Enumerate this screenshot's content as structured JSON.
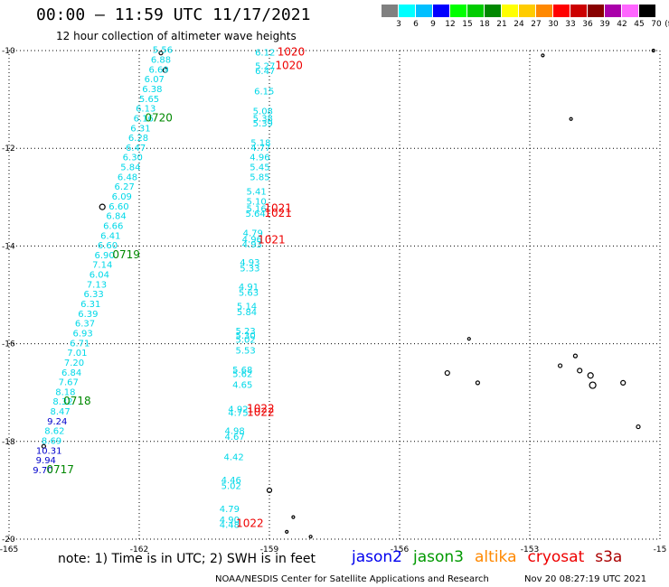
{
  "header": {
    "title": "00:00 — 11:59 UTC 11/17/2021",
    "subtitle": "12 hour collection of altimeter wave heights"
  },
  "legend": {
    "unit": "(ft)",
    "ticks": [
      "3",
      "6",
      "9",
      "12",
      "15",
      "18",
      "21",
      "24",
      "27",
      "30",
      "33",
      "36",
      "39",
      "42",
      "45",
      "70"
    ],
    "colors": [
      "#808080",
      "#00ffff",
      "#00bfff",
      "#0000ff",
      "#00ff00",
      "#00cc00",
      "#008800",
      "#ffff00",
      "#ffcc00",
      "#ff8800",
      "#ff0000",
      "#cc0000",
      "#880000",
      "#aa00aa",
      "#ff66ff",
      "#000000"
    ]
  },
  "map": {
    "lon_labels": [
      "-165",
      "-162",
      "-159",
      "-156",
      "-153",
      "-15"
    ],
    "lat_labels": [
      "-10",
      "-12",
      "-14",
      "-16",
      "-18",
      "-20"
    ],
    "lon_range": [
      -165,
      -150
    ],
    "lat_range": [
      -20,
      -10
    ],
    "grid": "dotted",
    "colors": {
      "cyan": "#00d8e8",
      "blue": "#0000cc",
      "green": "#008800",
      "red": "#ee0000"
    }
  },
  "tracks": {
    "west": [
      {
        "t": "5.56",
        "lon": -161.46,
        "lat": -10.05,
        "c": "cyan"
      },
      {
        "t": "6.88",
        "lon": -161.5,
        "lat": -10.25,
        "c": "cyan"
      },
      {
        "t": "6.69",
        "lon": -161.55,
        "lat": -10.45,
        "c": "cyan"
      },
      {
        "t": "6.07",
        "lon": -161.65,
        "lat": -10.65,
        "c": "cyan"
      },
      {
        "t": "6.38",
        "lon": -161.7,
        "lat": -10.85,
        "c": "cyan"
      },
      {
        "t": "5.65",
        "lon": -161.77,
        "lat": -11.05,
        "c": "cyan"
      },
      {
        "t": "6.13",
        "lon": -161.85,
        "lat": -11.25,
        "c": "cyan"
      },
      {
        "t": "6.16",
        "lon": -161.9,
        "lat": -11.45,
        "c": "cyan"
      },
      {
        "t": "6.31",
        "lon": -161.97,
        "lat": -11.65,
        "c": "cyan"
      },
      {
        "t": "6.28",
        "lon": -162.02,
        "lat": -11.85,
        "c": "cyan"
      },
      {
        "t": "6.47",
        "lon": -162.08,
        "lat": -12.05,
        "c": "cyan"
      },
      {
        "t": "6.30",
        "lon": -162.15,
        "lat": -12.25,
        "c": "cyan"
      },
      {
        "t": "5.84",
        "lon": -162.2,
        "lat": -12.45,
        "c": "cyan"
      },
      {
        "t": "6.48",
        "lon": -162.27,
        "lat": -12.65,
        "c": "cyan"
      },
      {
        "t": "6.27",
        "lon": -162.34,
        "lat": -12.85,
        "c": "cyan"
      },
      {
        "t": "6.09",
        "lon": -162.4,
        "lat": -13.05,
        "c": "cyan"
      },
      {
        "t": "6.60",
        "lon": -162.47,
        "lat": -13.25,
        "c": "cyan"
      },
      {
        "t": "6.84",
        "lon": -162.53,
        "lat": -13.45,
        "c": "cyan"
      },
      {
        "t": "6.66",
        "lon": -162.6,
        "lat": -13.65,
        "c": "cyan"
      },
      {
        "t": "6.41",
        "lon": -162.66,
        "lat": -13.85,
        "c": "cyan"
      },
      {
        "t": "6.60",
        "lon": -162.73,
        "lat": -14.05,
        "c": "cyan"
      },
      {
        "t": "6.90",
        "lon": -162.8,
        "lat": -14.25,
        "c": "cyan"
      },
      {
        "t": "7.14",
        "lon": -162.85,
        "lat": -14.45,
        "c": "cyan"
      },
      {
        "t": "6.04",
        "lon": -162.92,
        "lat": -14.65,
        "c": "cyan"
      },
      {
        "t": "7.13",
        "lon": -162.98,
        "lat": -14.85,
        "c": "cyan"
      },
      {
        "t": "6.33",
        "lon": -163.05,
        "lat": -15.05,
        "c": "cyan"
      },
      {
        "t": "6.31",
        "lon": -163.12,
        "lat": -15.25,
        "c": "cyan"
      },
      {
        "t": "6.39",
        "lon": -163.18,
        "lat": -15.45,
        "c": "cyan"
      },
      {
        "t": "6.37",
        "lon": -163.25,
        "lat": -15.65,
        "c": "cyan"
      },
      {
        "t": "6.93",
        "lon": -163.3,
        "lat": -15.85,
        "c": "cyan"
      },
      {
        "t": "6.71",
        "lon": -163.37,
        "lat": -16.05,
        "c": "cyan"
      },
      {
        "t": "7.01",
        "lon": -163.43,
        "lat": -16.25,
        "c": "cyan"
      },
      {
        "t": "7.20",
        "lon": -163.5,
        "lat": -16.45,
        "c": "cyan"
      },
      {
        "t": "6.84",
        "lon": -163.56,
        "lat": -16.65,
        "c": "cyan"
      },
      {
        "t": "7.67",
        "lon": -163.63,
        "lat": -16.85,
        "c": "cyan"
      },
      {
        "t": "8.18",
        "lon": -163.7,
        "lat": -17.05,
        "c": "cyan"
      },
      {
        "t": "8.32",
        "lon": -163.76,
        "lat": -17.25,
        "c": "cyan"
      },
      {
        "t": "8.47",
        "lon": -163.82,
        "lat": -17.45,
        "c": "cyan"
      },
      {
        "t": "9.24",
        "lon": -163.89,
        "lat": -17.65,
        "c": "blue"
      },
      {
        "t": "8.62",
        "lon": -163.95,
        "lat": -17.85,
        "c": "cyan"
      },
      {
        "t": "8.69",
        "lon": -164.02,
        "lat": -18.05,
        "c": "cyan"
      },
      {
        "t": "10.31",
        "lon": -164.08,
        "lat": -18.25,
        "c": "blue"
      },
      {
        "t": "9.94",
        "lon": -164.15,
        "lat": -18.45,
        "c": "blue"
      },
      {
        "t": "9.70",
        "lon": -164.22,
        "lat": -18.65,
        "c": "blue"
      }
    ],
    "west_times": [
      {
        "t": "0720",
        "lon": -161.55,
        "lat": -11.45
      },
      {
        "t": "0719",
        "lon": -162.3,
        "lat": -14.25
      },
      {
        "t": "0718",
        "lon": -163.43,
        "lat": -17.25
      },
      {
        "t": "0717",
        "lon": -163.82,
        "lat": -18.65
      }
    ],
    "east": [
      {
        "t": "6.12",
        "lon": -159.1,
        "lat": -10.1,
        "c": "cyan"
      },
      {
        "t": "5.27",
        "lon": -159.1,
        "lat": -10.38,
        "c": "cyan"
      },
      {
        "t": "6.47",
        "lon": -159.1,
        "lat": -10.48,
        "c": "cyan"
      },
      {
        "t": "6.15",
        "lon": -159.12,
        "lat": -10.9,
        "c": "cyan"
      },
      {
        "t": "5.08",
        "lon": -159.15,
        "lat": -11.3,
        "c": "cyan"
      },
      {
        "t": "5.38",
        "lon": -159.15,
        "lat": -11.45,
        "c": "cyan"
      },
      {
        "t": "5.39",
        "lon": -159.15,
        "lat": -11.55,
        "c": "cyan"
      },
      {
        "t": "5.18",
        "lon": -159.2,
        "lat": -11.95,
        "c": "cyan"
      },
      {
        "t": "4.77",
        "lon": -159.2,
        "lat": -12.05,
        "c": "cyan"
      },
      {
        "t": "4.96",
        "lon": -159.22,
        "lat": -12.25,
        "c": "cyan"
      },
      {
        "t": "5.45",
        "lon": -159.22,
        "lat": -12.45,
        "c": "cyan"
      },
      {
        "t": "5.85",
        "lon": -159.22,
        "lat": -12.65,
        "c": "cyan"
      },
      {
        "t": "5.41",
        "lon": -159.3,
        "lat": -12.95,
        "c": "cyan"
      },
      {
        "t": "5.10",
        "lon": -159.3,
        "lat": -13.15,
        "c": "cyan"
      },
      {
        "t": "5.16",
        "lon": -159.3,
        "lat": -13.3,
        "c": "cyan"
      },
      {
        "t": "5.64",
        "lon": -159.32,
        "lat": -13.4,
        "c": "cyan"
      },
      {
        "t": "4.79",
        "lon": -159.38,
        "lat": -13.8,
        "c": "cyan"
      },
      {
        "t": "4.96",
        "lon": -159.4,
        "lat": -13.93,
        "c": "cyan"
      },
      {
        "t": "4.93",
        "lon": -159.4,
        "lat": -14.03,
        "c": "cyan"
      },
      {
        "t": "4.93",
        "lon": -159.45,
        "lat": -14.4,
        "c": "cyan"
      },
      {
        "t": "5.33",
        "lon": -159.45,
        "lat": -14.52,
        "c": "cyan"
      },
      {
        "t": "4.91",
        "lon": -159.48,
        "lat": -14.9,
        "c": "cyan"
      },
      {
        "t": "5.63",
        "lon": -159.48,
        "lat": -15.02,
        "c": "cyan"
      },
      {
        "t": "5.14",
        "lon": -159.52,
        "lat": -15.3,
        "c": "cyan"
      },
      {
        "t": "5.84",
        "lon": -159.52,
        "lat": -15.42,
        "c": "cyan"
      },
      {
        "t": "5.23",
        "lon": -159.55,
        "lat": -15.8,
        "c": "cyan"
      },
      {
        "t": "5.30",
        "lon": -159.55,
        "lat": -15.9,
        "c": "cyan"
      },
      {
        "t": "5.02",
        "lon": -159.55,
        "lat": -15.98,
        "c": "cyan"
      },
      {
        "t": "5.53",
        "lon": -159.55,
        "lat": -16.2,
        "c": "cyan"
      },
      {
        "t": "5.68",
        "lon": -159.62,
        "lat": -16.6,
        "c": "cyan"
      },
      {
        "t": "5.62",
        "lon": -159.62,
        "lat": -16.68,
        "c": "cyan"
      },
      {
        "t": "4.65",
        "lon": -159.62,
        "lat": -16.9,
        "c": "cyan"
      },
      {
        "t": "4.92",
        "lon": -159.72,
        "lat": -17.4,
        "c": "cyan"
      },
      {
        "t": "4.75",
        "lon": -159.72,
        "lat": -17.48,
        "c": "cyan"
      },
      {
        "t": "4.98",
        "lon": -159.8,
        "lat": -17.85,
        "c": "cyan"
      },
      {
        "t": "4.67",
        "lon": -159.8,
        "lat": -17.97,
        "c": "cyan"
      },
      {
        "t": "4.42",
        "lon": -159.82,
        "lat": -18.38,
        "c": "cyan"
      },
      {
        "t": "4.46",
        "lon": -159.88,
        "lat": -18.85,
        "c": "cyan"
      },
      {
        "t": "5.02",
        "lon": -159.88,
        "lat": -18.97,
        "c": "cyan"
      },
      {
        "t": "4.79",
        "lon": -159.92,
        "lat": -19.45,
        "c": "cyan"
      },
      {
        "t": "4.90",
        "lon": -159.92,
        "lat": -19.67,
        "c": "cyan"
      },
      {
        "t": "4.48",
        "lon": -159.92,
        "lat": -19.77,
        "c": "cyan"
      }
    ],
    "east_times": [
      {
        "t": "1020",
        "lon": -158.5,
        "lat": -10.1
      },
      {
        "t": "1020",
        "lon": -158.55,
        "lat": -10.38
      },
      {
        "t": "1021",
        "lon": -158.8,
        "lat": -13.3
      },
      {
        "t": "1021",
        "lon": -158.8,
        "lat": -13.4
      },
      {
        "t": "1021",
        "lon": -158.95,
        "lat": -13.95
      },
      {
        "t": "1022",
        "lon": -159.2,
        "lat": -17.4
      },
      {
        "t": "1022",
        "lon": -159.2,
        "lat": -17.48
      },
      {
        "t": "1022",
        "lon": -159.45,
        "lat": -19.75
      }
    ]
  },
  "footer": {
    "note": "note: 1) Time is in UTC; 2) SWH is in feet",
    "satellites": [
      {
        "name": "jason2",
        "color": "#0000ee"
      },
      {
        "name": "jason3",
        "color": "#009900"
      },
      {
        "name": "altika",
        "color": "#ff8800"
      },
      {
        "name": "cryosat",
        "color": "#ee0000"
      },
      {
        "name": "s3a",
        "color": "#aa0000"
      }
    ],
    "credit": "NOAA/NESDIS Center for Satellite Applications and Research",
    "stamp": "Nov 20 08:27:19 UTC 2021"
  }
}
